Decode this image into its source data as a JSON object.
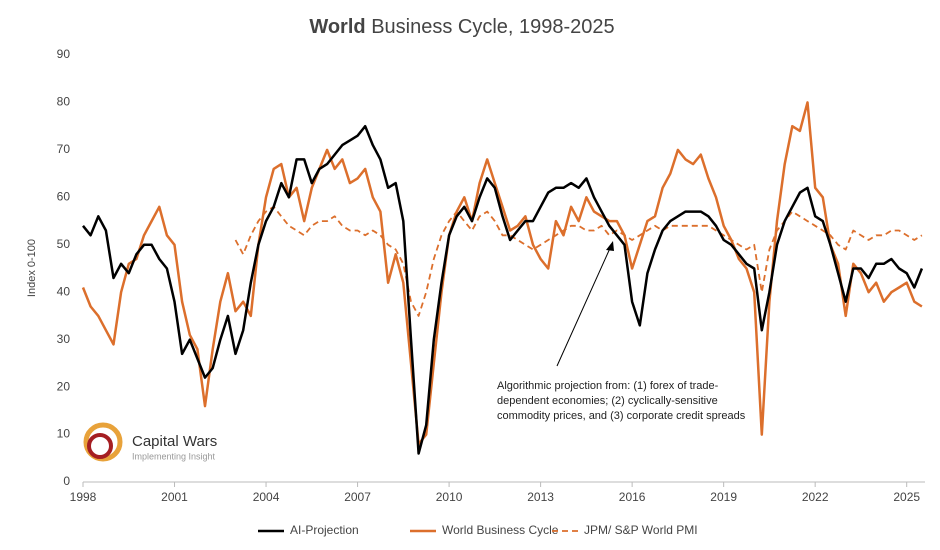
{
  "chart_data": {
    "type": "line",
    "title_emphasis": "World",
    "title": "Business Cycle, 1998-2025",
    "ylabel": "Index 0-100",
    "annotation": [
      "Algorithmic projection from: (1) forex of trade-",
      "dependent economies; (2) cyclically-sensitive",
      "commodity prices, and (3) corporate credit spreads"
    ],
    "logo": {
      "name": "Capital Wars",
      "tagline": "Implementing Insight"
    },
    "legend": "bottom",
    "xlim": [
      1998,
      2025.6
    ],
    "xticks": [
      1998,
      2001,
      2004,
      2007,
      2010,
      2013,
      2016,
      2019,
      2022,
      2025
    ],
    "ylim": [
      0,
      90
    ],
    "yticks": [
      0,
      10,
      20,
      30,
      40,
      50,
      60,
      70,
      80,
      90
    ],
    "x": [
      1998,
      1998.25,
      1998.5,
      1998.75,
      1999,
      1999.25,
      1999.5,
      1999.75,
      2000,
      2000.25,
      2000.5,
      2000.75,
      2001,
      2001.25,
      2001.5,
      2001.75,
      2002,
      2002.25,
      2002.5,
      2002.75,
      2003,
      2003.25,
      2003.5,
      2003.75,
      2004,
      2004.25,
      2004.5,
      2004.75,
      2005,
      2005.25,
      2005.5,
      2005.75,
      2006,
      2006.25,
      2006.5,
      2006.75,
      2007,
      2007.25,
      2007.5,
      2007.75,
      2008,
      2008.25,
      2008.5,
      2008.75,
      2009,
      2009.25,
      2009.5,
      2009.75,
      2010,
      2010.25,
      2010.5,
      2010.75,
      2011,
      2011.25,
      2011.5,
      2011.75,
      2012,
      2012.25,
      2012.5,
      2012.75,
      2013,
      2013.25,
      2013.5,
      2013.75,
      2014,
      2014.25,
      2014.5,
      2014.75,
      2015,
      2015.25,
      2015.5,
      2015.75,
      2016,
      2016.25,
      2016.5,
      2016.75,
      2017,
      2017.25,
      2017.5,
      2017.75,
      2018,
      2018.25,
      2018.5,
      2018.75,
      2019,
      2019.25,
      2019.5,
      2019.75,
      2020,
      2020.25,
      2020.5,
      2020.75,
      2021,
      2021.25,
      2021.5,
      2021.75,
      2022,
      2022.25,
      2022.5,
      2022.75,
      2023,
      2023.25,
      2023.5,
      2023.75,
      2024,
      2024.25,
      2024.5,
      2024.75,
      2025,
      2025.25,
      2025.5
    ],
    "series": [
      {
        "name": "AI-Projection",
        "color": "#000000",
        "dash": false,
        "values": [
          54,
          52,
          56,
          53,
          43,
          46,
          44,
          48,
          50,
          50,
          47,
          45,
          38,
          27,
          30,
          26,
          22,
          24,
          30,
          35,
          27,
          32,
          42,
          50,
          55,
          58,
          63,
          60,
          68,
          68,
          63,
          66,
          67,
          69,
          71,
          72,
          73,
          75,
          71,
          68,
          62,
          63,
          55,
          30,
          6,
          12,
          30,
          42,
          52,
          56,
          58,
          55,
          60,
          64,
          62,
          56,
          51,
          53,
          55,
          55,
          58,
          61,
          62,
          62,
          63,
          62,
          64,
          60,
          57,
          54,
          52,
          50,
          38,
          33,
          44,
          49,
          53,
          55,
          56,
          57,
          57,
          57,
          56,
          54,
          51,
          50,
          48,
          46,
          45,
          32,
          40,
          50,
          55,
          58,
          61,
          62,
          56,
          55,
          50,
          44,
          38,
          45,
          45,
          43,
          46,
          46,
          47,
          45,
          44,
          41,
          45
        ]
      },
      {
        "name": "World Business Cycle",
        "color": "#dc6f2c",
        "dash": false,
        "values": [
          41,
          37,
          35,
          32,
          29,
          40,
          46,
          47,
          52,
          55,
          58,
          52,
          50,
          38,
          31,
          28,
          16,
          28,
          38,
          44,
          36,
          38,
          35,
          50,
          60,
          66,
          67,
          60,
          62,
          55,
          62,
          66,
          70,
          66,
          68,
          63,
          64,
          66,
          60,
          57,
          42,
          48,
          42,
          25,
          8,
          10,
          25,
          40,
          52,
          57,
          60,
          55,
          63,
          68,
          63,
          58,
          53,
          54,
          56,
          50,
          47,
          45,
          55,
          52,
          58,
          55,
          60,
          57,
          56,
          55,
          55,
          52,
          45,
          50,
          55,
          56,
          62,
          65,
          70,
          68,
          67,
          69,
          64,
          60,
          54,
          51,
          47,
          45,
          40,
          10,
          38,
          55,
          67,
          75,
          74,
          80,
          62,
          60,
          50,
          46,
          35,
          46,
          44,
          40,
          42,
          38,
          40,
          41,
          42,
          38,
          37
        ]
      },
      {
        "name": "JPM/ S&P World PMI",
        "color": "#dc6f2c",
        "dash": true,
        "values": [
          null,
          null,
          null,
          null,
          null,
          null,
          null,
          null,
          null,
          null,
          null,
          null,
          null,
          null,
          null,
          null,
          null,
          null,
          null,
          null,
          51,
          48,
          52,
          55,
          57,
          58,
          56,
          54,
          53,
          52,
          54,
          55,
          55,
          56,
          54,
          53,
          53,
          52,
          53,
          52,
          50,
          49,
          46,
          38,
          35,
          40,
          47,
          52,
          55,
          57,
          55,
          53,
          56,
          57,
          55,
          52,
          52,
          51,
          50,
          49,
          50,
          51,
          52,
          53,
          54,
          54,
          53,
          53,
          54,
          52,
          53,
          52,
          51,
          52,
          53,
          54,
          53,
          54,
          54,
          54,
          54,
          54,
          54,
          53,
          52,
          51,
          50,
          49,
          50,
          40,
          49,
          53,
          55,
          57,
          56,
          55,
          54,
          53,
          52,
          50,
          49,
          53,
          52,
          51,
          52,
          52,
          53,
          53,
          52,
          51,
          52
        ]
      }
    ]
  }
}
